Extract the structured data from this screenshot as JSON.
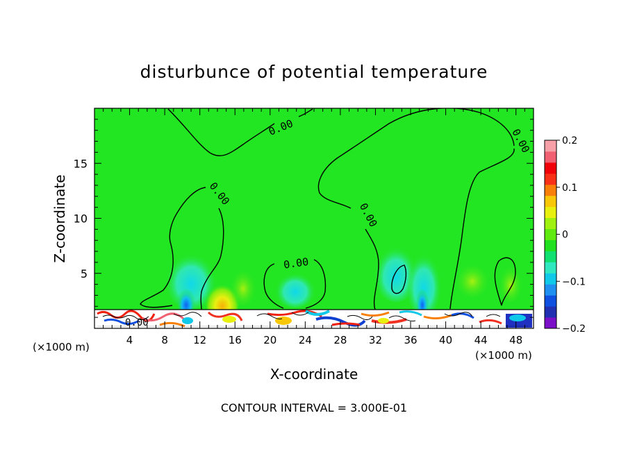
{
  "chart_data": {
    "type": "heatmap",
    "title": "disturbunce of potential temperature",
    "xlabel": "X-coordinate",
    "ylabel": "Z-coordinate",
    "x_unit": "(×1000 m)",
    "x_unit_right": "(×1000 m)",
    "footer": "CONTOUR INTERVAL = 3.000E-01",
    "xlim": [
      0,
      50
    ],
    "ylim": [
      0,
      20
    ],
    "x_ticks": [
      "4",
      "8",
      "12",
      "16",
      "20",
      "24",
      "28",
      "32",
      "36",
      "40",
      "44",
      "48"
    ],
    "y_ticks": [
      "5",
      "10",
      "15"
    ],
    "contour_label": "0.00",
    "colorbar": {
      "range": [
        -0.2,
        0.2
      ],
      "tick_labels": [
        "0.2",
        "0.1",
        "0",
        "−0.1",
        "−0.2"
      ],
      "colors": [
        "#7b10c8",
        "#2030b0",
        "#1050e0",
        "#2090f0",
        "#10c8e8",
        "#30e8c0",
        "#10e070",
        "#20e020",
        "#60ea10",
        "#a0f010",
        "#e8f010",
        "#f8c808",
        "#f88008",
        "#f83018",
        "#f00008",
        "#f06070",
        "#f8a0a8"
      ]
    },
    "background_color": "#22e622"
  }
}
